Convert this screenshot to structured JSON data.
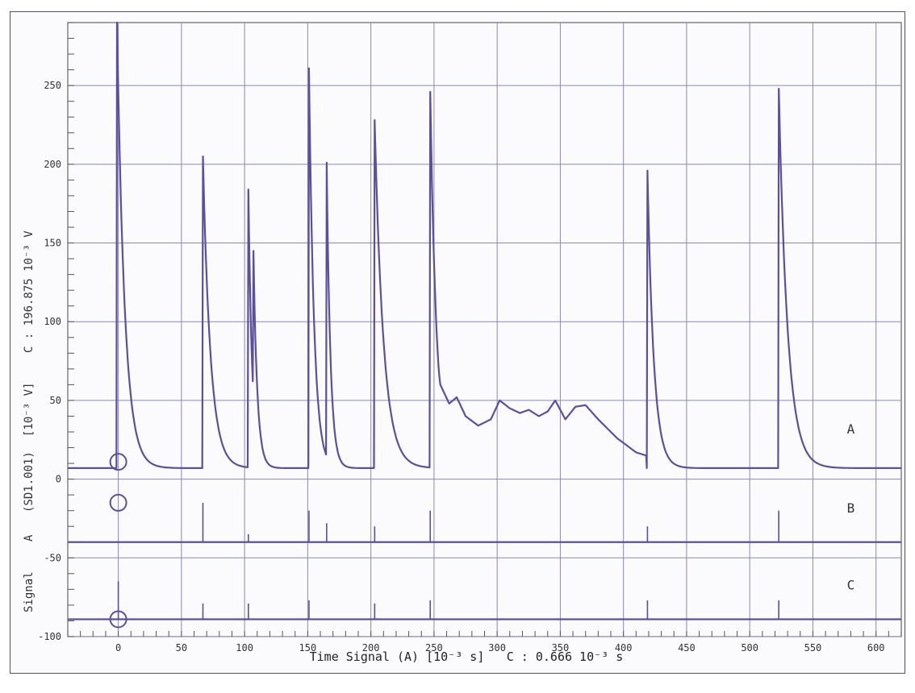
{
  "chart_data": {
    "type": "line",
    "title": "",
    "xlabel": "Time Signal (A) [10⁻³ s]",
    "xlabel_note": "C : 0.666 10⁻³ s",
    "ylabel_parts": [
      "Signal",
      "A",
      "(SD1.001)",
      "[10⁻³ V]",
      "C : 196.875 10⁻³ V"
    ],
    "xlim": [
      -40,
      620
    ],
    "ylim": [
      -100,
      290
    ],
    "x_ticks": [
      0,
      50,
      100,
      150,
      200,
      250,
      300,
      350,
      400,
      450,
      500,
      550,
      600
    ],
    "y_ticks": [
      -100,
      -50,
      0,
      50,
      100,
      150,
      200,
      250
    ],
    "grid": true,
    "line_color": "#5b4f9e",
    "trace_labels": [
      {
        "name": "A",
        "x": 580,
        "y": 32
      },
      {
        "name": "B",
        "x": 580,
        "y": -18
      },
      {
        "name": "C",
        "x": 580,
        "y": -67
      }
    ],
    "markers": [
      {
        "x": 0,
        "y": 11
      },
      {
        "x": 0,
        "y": -15
      },
      {
        "x": 0,
        "y": -89
      }
    ],
    "series": [
      {
        "name": "A",
        "baseline": 7,
        "pulses": [
          {
            "t": -1,
            "peak": 290,
            "decay": 6
          },
          {
            "t": 67,
            "peak": 205,
            "decay": 6
          },
          {
            "t": 103,
            "peak": 184,
            "decay": 3
          },
          {
            "t": 107,
            "peak": 145,
            "decay": 3
          },
          {
            "t": 151,
            "peak": 261,
            "decay": 4
          },
          {
            "t": 165,
            "peak": 201,
            "decay": 3
          },
          {
            "t": 203,
            "peak": 228,
            "decay": 7
          },
          {
            "t": 247,
            "peak": 246,
            "decay": 5
          },
          {
            "t": 419,
            "peak": 196,
            "decay": 5
          },
          {
            "t": 523,
            "peak": 248,
            "decay": 7
          }
        ],
        "hump": [
          {
            "x": 250,
            "y": 95
          },
          {
            "x": 255,
            "y": 60
          },
          {
            "x": 262,
            "y": 48
          },
          {
            "x": 268,
            "y": 52
          },
          {
            "x": 275,
            "y": 40
          },
          {
            "x": 285,
            "y": 34
          },
          {
            "x": 295,
            "y": 38
          },
          {
            "x": 302,
            "y": 50
          },
          {
            "x": 310,
            "y": 45
          },
          {
            "x": 318,
            "y": 42
          },
          {
            "x": 325,
            "y": 44
          },
          {
            "x": 333,
            "y": 40
          },
          {
            "x": 340,
            "y": 43
          },
          {
            "x": 346,
            "y": 50
          },
          {
            "x": 354,
            "y": 38
          },
          {
            "x": 362,
            "y": 46
          },
          {
            "x": 370,
            "y": 47
          },
          {
            "x": 380,
            "y": 38
          },
          {
            "x": 395,
            "y": 26
          },
          {
            "x": 410,
            "y": 17
          },
          {
            "x": 418,
            "y": 15
          }
        ]
      },
      {
        "name": "B",
        "baseline": -40,
        "spikes": [
          {
            "x": 67,
            "y": -15
          },
          {
            "x": 103,
            "y": -35
          },
          {
            "x": 151,
            "y": -20
          },
          {
            "x": 165,
            "y": -28
          },
          {
            "x": 203,
            "y": -30
          },
          {
            "x": 247,
            "y": -20
          },
          {
            "x": 419,
            "y": -30
          },
          {
            "x": 523,
            "y": -20
          }
        ]
      },
      {
        "name": "C",
        "baseline": -89,
        "spikes": [
          {
            "x": 0,
            "y": -65
          },
          {
            "x": 67,
            "y": -79
          },
          {
            "x": 103,
            "y": -79
          },
          {
            "x": 151,
            "y": -77
          },
          {
            "x": 203,
            "y": -79
          },
          {
            "x": 247,
            "y": -77
          },
          {
            "x": 419,
            "y": -77
          },
          {
            "x": 523,
            "y": -77
          }
        ]
      }
    ]
  }
}
